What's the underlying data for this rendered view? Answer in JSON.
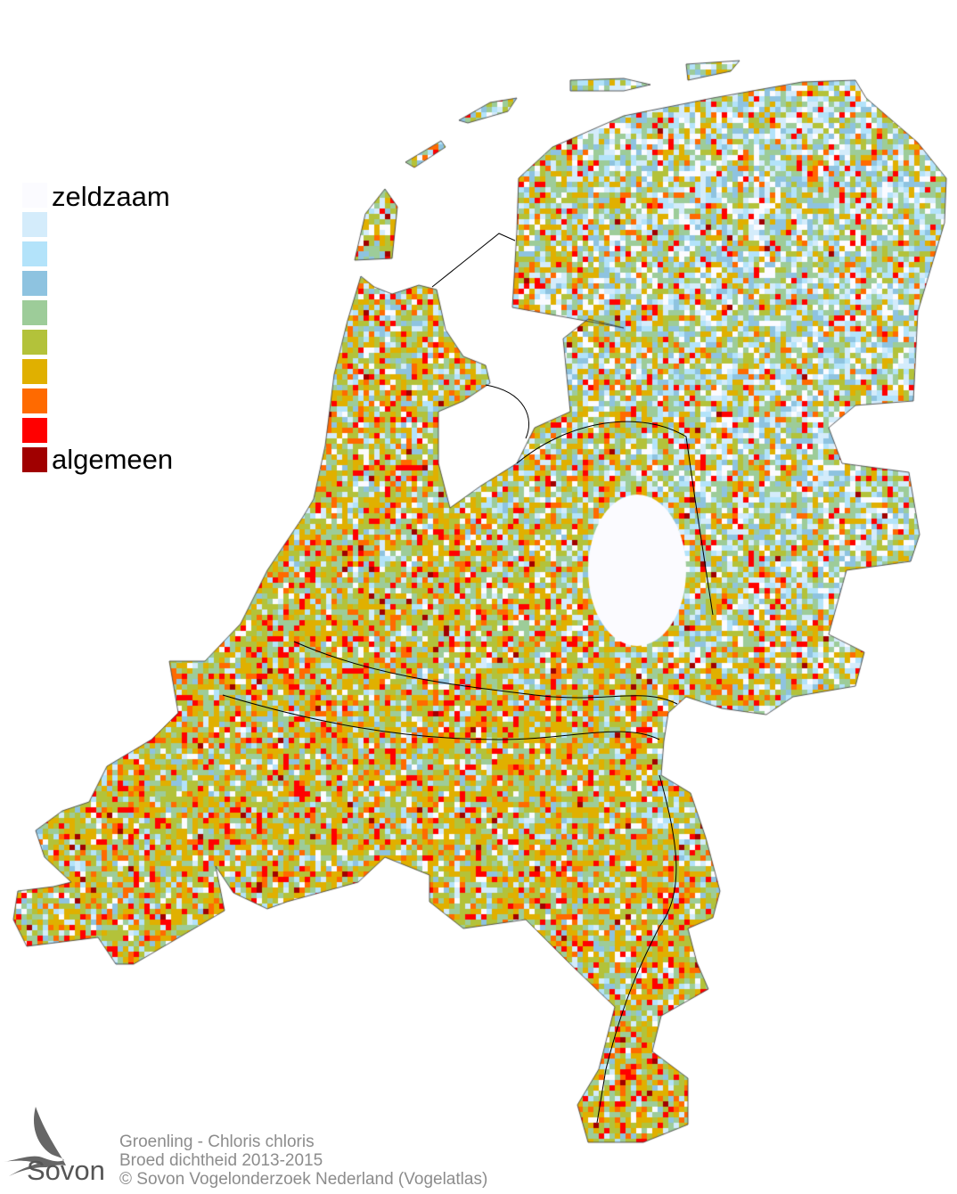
{
  "legend": {
    "top_label": "zeldzaam",
    "bottom_label": "algemeen",
    "colors": [
      "#fbfbff",
      "#d4ecfb",
      "#b3e3fa",
      "#8ec3e0",
      "#9dcc99",
      "#b3c23a",
      "#e0b000",
      "#ff6a00",
      "#ff0000",
      "#a00000"
    ]
  },
  "credits": {
    "line1": "Groenling - Chloris chloris",
    "line2": "Broed dichtheid 2013-2015",
    "line3": "© Sovon Vogelonderzoek Nederland (Vogelatlas)"
  },
  "logo": {
    "text": "Sovon",
    "icon": "swallow-icon"
  }
}
